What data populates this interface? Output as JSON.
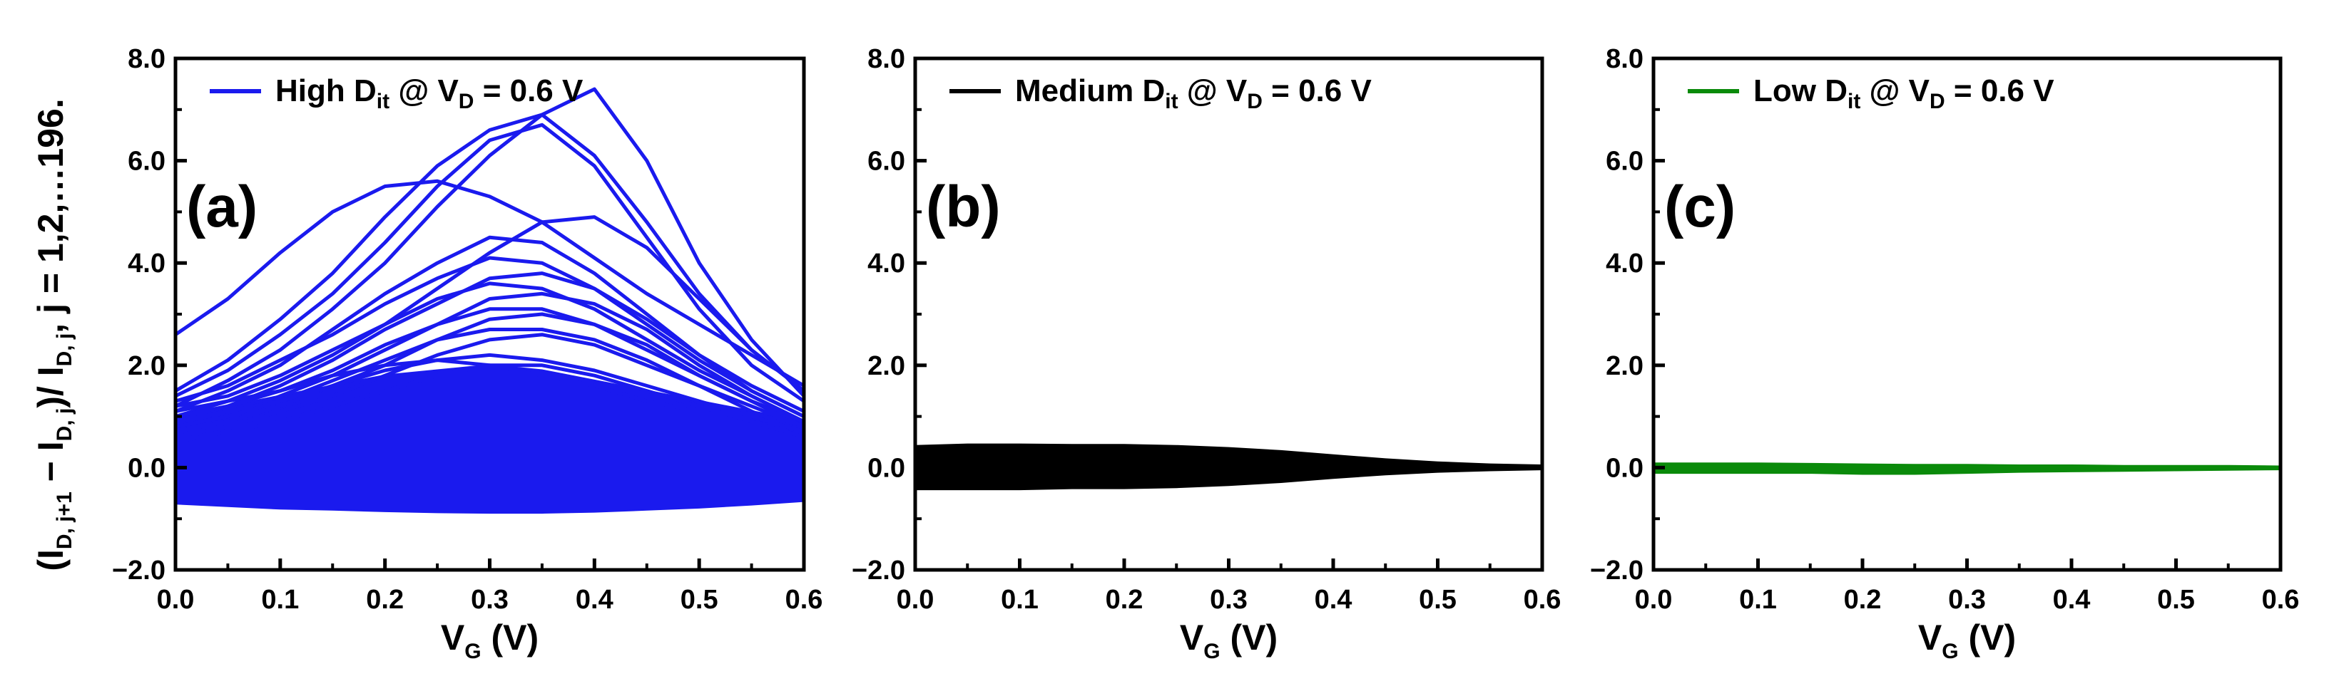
{
  "ylabel": {
    "p1": "(I",
    "p1_sub": "D, j+1",
    "p2": " − I",
    "p2_sub": "D, j",
    "p3": ")/ I",
    "p3_sub": "D, j",
    "p4": ", j = 1,2,…196."
  },
  "chart_data": [
    {
      "type": "line",
      "panel_label": "(a)",
      "legend": {
        "prefix": "High D",
        "sub1": "it",
        "mid": " @ V",
        "sub2": "D",
        "suffix": " = 0.6 V"
      },
      "color": "#1a1aee",
      "xlabel": {
        "main": "V",
        "sub": "G",
        "unit": " (V)"
      },
      "xlim": [
        0.0,
        0.6
      ],
      "ylim": [
        -2.0,
        8.0
      ],
      "xticks": [
        "0.0",
        "0.1",
        "0.2",
        "0.3",
        "0.4",
        "0.5",
        "0.6"
      ],
      "yticks": [
        "−2.0",
        "0.0",
        "2.0",
        "4.0",
        "6.0",
        "8.0"
      ],
      "x": [
        0.0,
        0.05,
        0.1,
        0.15,
        0.2,
        0.25,
        0.3,
        0.35,
        0.4,
        0.45,
        0.5,
        0.55,
        0.6
      ],
      "band": {
        "lower": [
          -0.7,
          -0.75,
          -0.8,
          -0.82,
          -0.85,
          -0.87,
          -0.88,
          -0.88,
          -0.86,
          -0.82,
          -0.78,
          -0.72,
          -0.65
        ],
        "upper": [
          1.0,
          1.2,
          1.4,
          1.6,
          1.8,
          1.9,
          2.0,
          1.9,
          1.7,
          1.5,
          1.3,
          1.1,
          0.9
        ]
      },
      "series": [
        {
          "values": [
            2.6,
            3.3,
            4.2,
            5.0,
            5.5,
            5.6,
            5.3,
            4.8,
            4.1,
            3.4,
            2.8,
            2.2,
            1.6
          ]
        },
        {
          "values": [
            1.5,
            2.1,
            2.9,
            3.8,
            4.9,
            5.9,
            6.6,
            6.9,
            6.1,
            4.8,
            3.4,
            2.3,
            1.5
          ]
        },
        {
          "values": [
            1.2,
            1.7,
            2.3,
            3.1,
            4.0,
            5.1,
            6.1,
            6.9,
            7.4,
            6.0,
            4.0,
            2.5,
            1.4
          ]
        },
        {
          "values": [
            1.4,
            1.9,
            2.6,
            3.4,
            4.4,
            5.5,
            6.4,
            6.7,
            5.9,
            4.5,
            3.1,
            2.0,
            1.3
          ]
        },
        {
          "values": [
            1.0,
            1.3,
            1.7,
            2.2,
            2.8,
            3.5,
            4.2,
            4.8,
            4.9,
            4.3,
            3.3,
            2.3,
            1.5
          ]
        },
        {
          "values": [
            1.1,
            1.5,
            2.0,
            2.7,
            3.4,
            4.0,
            4.5,
            4.4,
            3.8,
            3.0,
            2.2,
            1.5,
            1.0
          ]
        },
        {
          "values": [
            1.3,
            1.6,
            2.1,
            2.6,
            3.2,
            3.7,
            4.1,
            4.0,
            3.5,
            2.8,
            2.1,
            1.5,
            1.0
          ]
        },
        {
          "values": [
            0.9,
            1.2,
            1.6,
            2.1,
            2.7,
            3.2,
            3.7,
            3.8,
            3.5,
            2.9,
            2.2,
            1.6,
            1.1
          ]
        },
        {
          "values": [
            1.2,
            1.4,
            1.8,
            2.3,
            2.8,
            3.3,
            3.6,
            3.5,
            3.1,
            2.5,
            1.9,
            1.4,
            0.9
          ]
        },
        {
          "values": [
            0.8,
            1.0,
            1.4,
            1.8,
            2.3,
            2.8,
            3.3,
            3.4,
            3.2,
            2.7,
            2.0,
            1.4,
            0.9
          ]
        },
        {
          "values": [
            1.0,
            1.2,
            1.5,
            1.9,
            2.4,
            2.8,
            3.1,
            3.1,
            2.8,
            2.3,
            1.8,
            1.3,
            0.9
          ]
        },
        {
          "values": [
            0.7,
            0.9,
            1.2,
            1.6,
            2.0,
            2.5,
            2.9,
            3.0,
            2.8,
            2.4,
            1.8,
            1.3,
            0.8
          ]
        },
        {
          "values": [
            0.9,
            1.1,
            1.3,
            1.7,
            2.1,
            2.5,
            2.7,
            2.7,
            2.5,
            2.1,
            1.6,
            1.2,
            0.8
          ]
        },
        {
          "values": [
            0.6,
            0.8,
            1.1,
            1.4,
            1.8,
            2.2,
            2.5,
            2.6,
            2.4,
            2.0,
            1.6,
            1.1,
            0.7
          ]
        },
        {
          "values": [
            1.1,
            1.3,
            1.5,
            1.8,
            2.0,
            2.1,
            2.0,
            1.8,
            1.6,
            1.3,
            1.1,
            0.9,
            0.7
          ]
        },
        {
          "values": [
            0.8,
            1.0,
            1.3,
            1.6,
            1.9,
            2.1,
            2.2,
            2.1,
            1.9,
            1.6,
            1.3,
            1.0,
            0.7
          ]
        },
        {
          "values": [
            0.5,
            0.7,
            0.9,
            1.2,
            1.5,
            1.8,
            2.0,
            2.0,
            1.8,
            1.5,
            1.2,
            0.9,
            0.6
          ]
        }
      ]
    },
    {
      "type": "line",
      "panel_label": "(b)",
      "legend": {
        "prefix": "Medium D",
        "sub1": "it",
        "mid": " @ V",
        "sub2": "D",
        "suffix": " = 0.6 V"
      },
      "color": "#000000",
      "xlabel": {
        "main": "V",
        "sub": "G",
        "unit": " (V)"
      },
      "xlim": [
        0.0,
        0.6
      ],
      "ylim": [
        -2.0,
        8.0
      ],
      "xticks": [
        "0.0",
        "0.1",
        "0.2",
        "0.3",
        "0.4",
        "0.5",
        "0.6"
      ],
      "yticks": [
        "−2.0",
        "0.0",
        "2.0",
        "4.0",
        "6.0",
        "8.0"
      ],
      "x": [
        0.0,
        0.05,
        0.1,
        0.15,
        0.2,
        0.25,
        0.3,
        0.35,
        0.4,
        0.45,
        0.5,
        0.55,
        0.6
      ],
      "band": {
        "lower": [
          -0.42,
          -0.42,
          -0.42,
          -0.4,
          -0.4,
          -0.38,
          -0.34,
          -0.28,
          -0.2,
          -0.13,
          -0.08,
          -0.05,
          -0.03
        ],
        "upper": [
          0.42,
          0.45,
          0.45,
          0.44,
          0.44,
          0.42,
          0.38,
          0.32,
          0.24,
          0.16,
          0.1,
          0.06,
          0.04
        ]
      },
      "series": []
    },
    {
      "type": "line",
      "panel_label": "(c)",
      "legend": {
        "prefix": "Low D",
        "sub1": "it",
        "mid": " @ V",
        "sub2": "D",
        "suffix": " = 0.6 V"
      },
      "color": "#0a8a0a",
      "xlabel": {
        "main": "V",
        "sub": "G",
        "unit": " (V)"
      },
      "xlim": [
        0.0,
        0.6
      ],
      "ylim": [
        -2.0,
        8.0
      ],
      "xticks": [
        "0.0",
        "0.1",
        "0.2",
        "0.3",
        "0.4",
        "0.5",
        "0.6"
      ],
      "yticks": [
        "−2.0",
        "0.0",
        "2.0",
        "4.0",
        "6.0",
        "8.0"
      ],
      "x": [
        0.0,
        0.05,
        0.1,
        0.15,
        0.2,
        0.25,
        0.3,
        0.35,
        0.4,
        0.45,
        0.5,
        0.55,
        0.6
      ],
      "band": {
        "lower": [
          -0.1,
          -0.1,
          -0.1,
          -0.1,
          -0.12,
          -0.12,
          -0.1,
          -0.08,
          -0.07,
          -0.06,
          -0.05,
          -0.04,
          -0.03
        ],
        "upper": [
          0.08,
          0.08,
          0.08,
          0.07,
          0.06,
          0.05,
          0.05,
          0.04,
          0.04,
          0.03,
          0.03,
          0.03,
          0.02
        ]
      },
      "series": []
    }
  ]
}
